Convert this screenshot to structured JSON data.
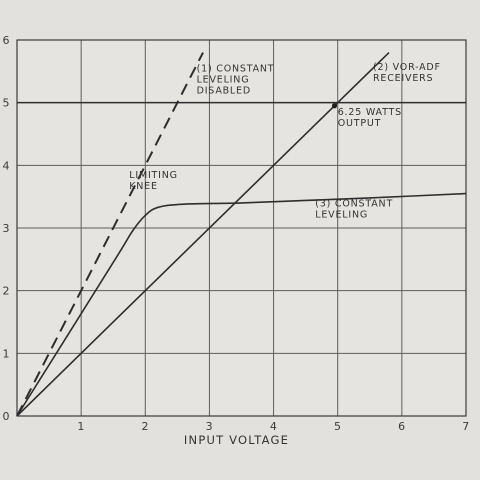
{
  "chart_data": {
    "type": "line",
    "title": "",
    "xlabel": "INPUT VOLTAGE",
    "ylabel": "",
    "xlim": [
      0,
      7
    ],
    "ylim": [
      0,
      6
    ],
    "x_ticks": [
      0,
      1,
      2,
      3,
      4,
      5,
      6,
      7
    ],
    "y_ticks": [
      0,
      1,
      2,
      3,
      4,
      5,
      6
    ],
    "grid": true,
    "series": [
      {
        "name": "(1) CONSTANT LEVELING DISABLED",
        "style": "dashed",
        "points": [
          [
            0,
            0
          ],
          [
            2.9,
            5.8
          ]
        ]
      },
      {
        "name": "(2) VOR-ADF RECEIVERS",
        "style": "solid",
        "points": [
          [
            0,
            0
          ],
          [
            5.8,
            5.8
          ]
        ]
      },
      {
        "name": "(3) CONSTANT LEVELING",
        "style": "solid",
        "points": [
          [
            0,
            0
          ],
          [
            1.5,
            2.45
          ],
          [
            1.8,
            2.95
          ],
          [
            2.0,
            3.2
          ],
          [
            2.2,
            3.33
          ],
          [
            2.6,
            3.38
          ],
          [
            3.5,
            3.4
          ],
          [
            4.5,
            3.44
          ],
          [
            5.5,
            3.48
          ],
          [
            7,
            3.55
          ]
        ]
      }
    ],
    "reference_line": {
      "y": 5,
      "x_range": [
        0,
        7
      ]
    },
    "marker_point": {
      "x": 4.95,
      "y": 4.95
    },
    "annotations": [
      {
        "id": "series1",
        "lines": [
          "(1) CONSTANT",
          "LEVELING",
          "DISABLED"
        ],
        "at": [
          2.8,
          5.5
        ]
      },
      {
        "id": "series2",
        "lines": [
          "(2) VOR-ADF",
          "RECEIVERS"
        ],
        "at": [
          5.55,
          5.52
        ]
      },
      {
        "id": "output",
        "lines": [
          "6.25 WATTS",
          "OUTPUT"
        ],
        "at": [
          5.0,
          4.8
        ]
      },
      {
        "id": "knee",
        "lines": [
          "LIMITING",
          "KNEE"
        ],
        "at": [
          1.75,
          3.8
        ]
      },
      {
        "id": "series3",
        "lines": [
          "(3) CONSTANT",
          "LEVELING"
        ],
        "at": [
          4.65,
          3.34
        ]
      }
    ]
  }
}
